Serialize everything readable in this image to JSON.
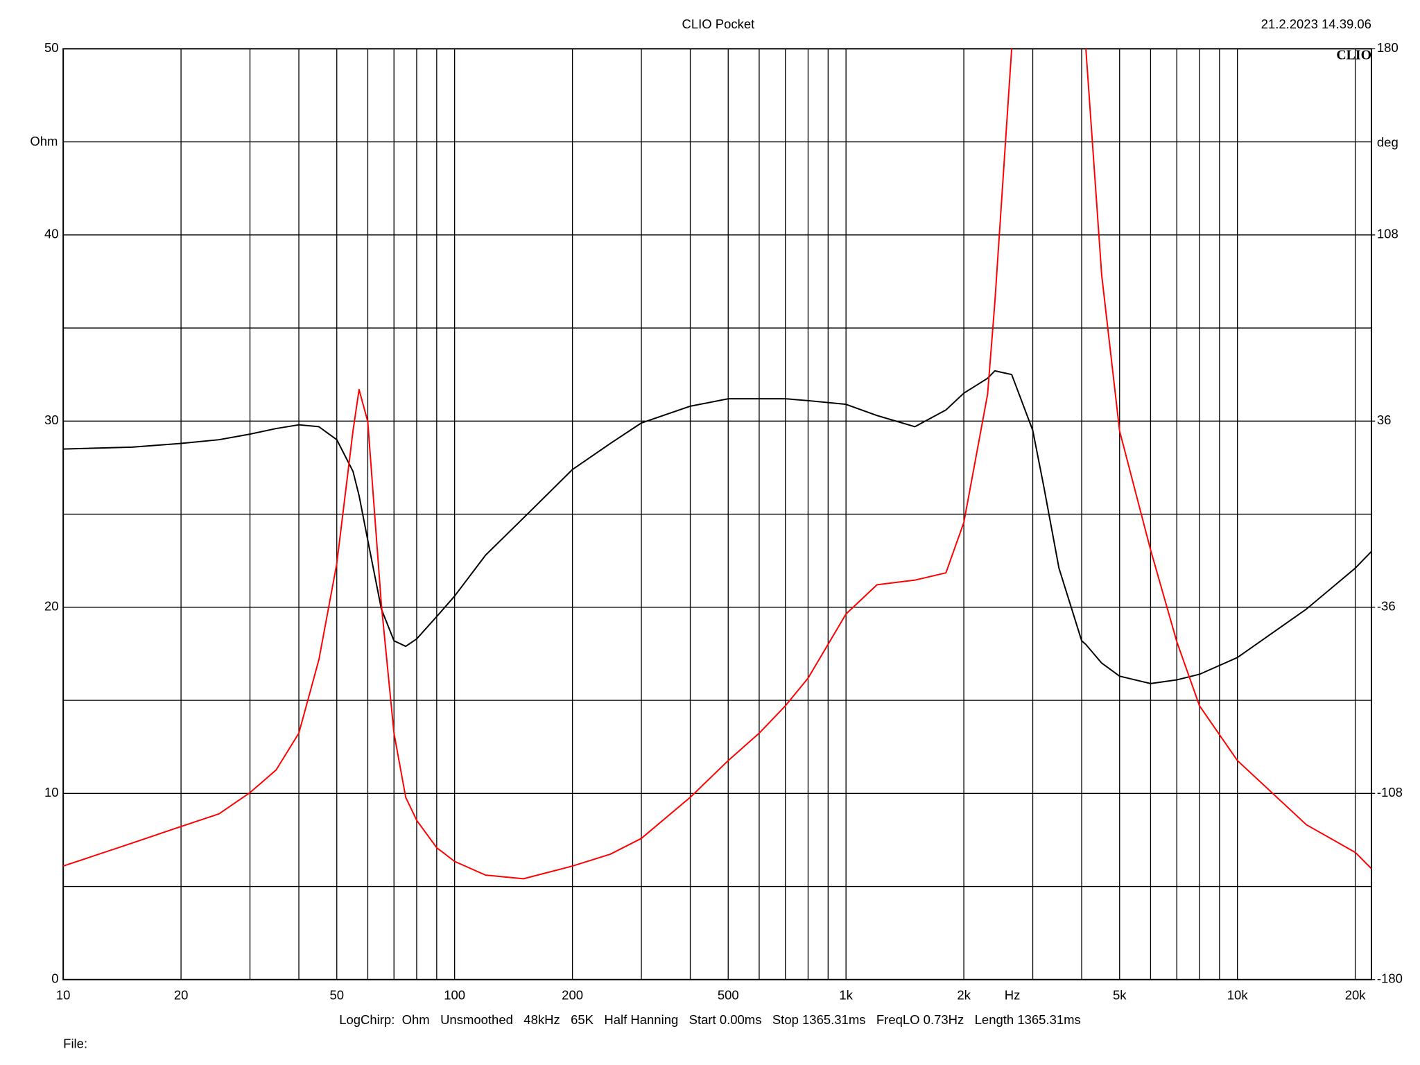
{
  "chart_data": {
    "type": "line",
    "title": "CLIO Pocket",
    "timestamp": "21.2.2023 14.39.06",
    "logo": "CLIO",
    "footer": "LogChirp:  Ohm   Unsmoothed   48kHz   65K   Half Hanning   Start 0.00ms   Stop 1365.31ms   FreqLO 0.73Hz   Length 1365.31ms",
    "file_label": "File:",
    "x_label": "Hz",
    "y_label": "Ohm",
    "y2_label": "deg",
    "xscale": "log",
    "grid": true,
    "xlim": [
      10,
      22000
    ],
    "xticks": [
      10,
      20,
      50,
      100,
      200,
      500,
      {
        "value": 1000,
        "label": "1k"
      },
      {
        "value": 2000,
        "label": "2k"
      },
      {
        "value": 5000,
        "label": "5k"
      },
      {
        "value": 10000,
        "label": "10k"
      },
      {
        "value": 20000,
        "label": "20k"
      }
    ],
    "xgrid_minor": [
      30,
      40,
      60,
      70,
      80,
      90,
      300,
      400,
      600,
      700,
      800,
      900,
      3000,
      4000,
      6000,
      7000,
      8000,
      9000
    ],
    "ylim": [
      0,
      50
    ],
    "yticks": [
      0,
      10,
      20,
      30,
      40,
      50
    ],
    "ygrid_minor": [
      5,
      15,
      25,
      35,
      45
    ],
    "y2lim": [
      -180,
      180
    ],
    "y2ticks": [
      -180,
      -108,
      -36,
      36,
      108,
      180
    ],
    "x": [
      10,
      15,
      20,
      25,
      30,
      35,
      40,
      45,
      50,
      55,
      57,
      60,
      65,
      70,
      75,
      80,
      90,
      100,
      120,
      150,
      200,
      250,
      300,
      400,
      500,
      600,
      700,
      800,
      1000,
      1200,
      1500,
      1800,
      2000,
      2300,
      2400,
      2650,
      3000,
      3200,
      3500,
      4000,
      4100,
      4500,
      5000,
      6000,
      7000,
      8000,
      10000,
      15000,
      20000,
      22000
    ],
    "series": [
      {
        "color": "#000000",
        "values": [
          28.5,
          28.6,
          28.8,
          29.0,
          29.3,
          29.6,
          29.8,
          29.7,
          29.0,
          27.3,
          26.0,
          23.6,
          19.9,
          18.2,
          17.9,
          18.3,
          19.5,
          20.6,
          22.8,
          24.8,
          27.4,
          28.8,
          29.9,
          30.8,
          31.2,
          31.2,
          31.2,
          31.1,
          30.9,
          30.3,
          29.7,
          30.6,
          31.5,
          32.3,
          32.7,
          32.5,
          29.5,
          26.5,
          22.1,
          18.2,
          18.0,
          17.0,
          16.3,
          15.9,
          16.1,
          16.4,
          17.3,
          19.9,
          22.1,
          23.0
        ]
      },
      {
        "color": "#ff0000",
        "axis": "y2",
        "values": [
          -136.1,
          -127.2,
          -120.8,
          -115.9,
          -107.7,
          -98.9,
          -84.7,
          -56.3,
          -19.1,
          32.2,
          48.2,
          35.8,
          -35.1,
          -84.7,
          -109.5,
          -118.4,
          -129.0,
          -134.3,
          -139.6,
          -141.0,
          -136.1,
          -131.5,
          -125.4,
          -109.5,
          -95.3,
          -84.7,
          -74.1,
          -63.4,
          -38.6,
          -27.3,
          -25.5,
          -22.7,
          -3.2,
          46.4,
          81.8,
          180,
          null,
          null,
          null,
          null,
          180,
          92.5,
          32.2,
          -13.8,
          -49.3,
          -74.1,
          -95.3,
          -120.1,
          -130.8,
          -137.1
        ]
      }
    ]
  }
}
